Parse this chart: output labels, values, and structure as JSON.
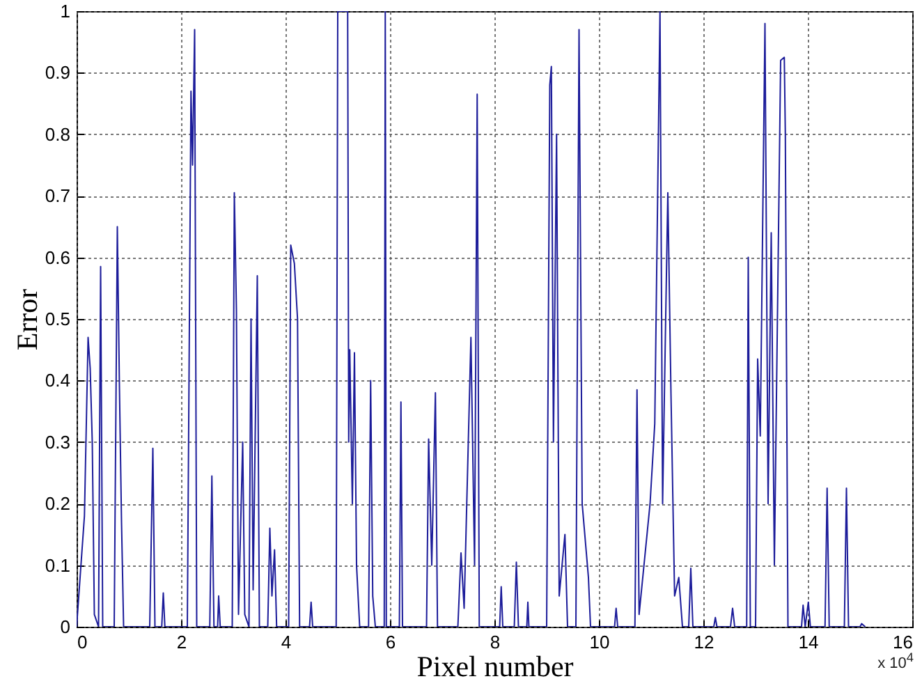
{
  "chart_data": {
    "type": "line",
    "xlabel": "Pixel number",
    "ylabel": "Error",
    "annotations": [
      "x 10$^{4}$"
    ],
    "xlim": [
      0,
      16
    ],
    "xticks": [
      0,
      2,
      4,
      6,
      8,
      10,
      12,
      14,
      16
    ],
    "ylim": [
      0,
      1
    ],
    "yticks": [
      0,
      0.1,
      0.2,
      0.3,
      0.4,
      0.5,
      0.6,
      0.7,
      0.8,
      0.9,
      1
    ],
    "grid": true,
    "line_style": "solid",
    "series": [
      {
        "color": "#1c1c9a",
        "x": [
          0,
          0.15,
          0.22,
          0.26,
          0.3,
          0.34,
          0.42,
          0.46,
          0.5,
          0.72,
          0.78,
          0.82,
          0.86,
          0.9,
          1.4,
          1.46,
          1.5,
          1.63,
          1.66,
          1.69,
          2.12,
          2.19,
          2.22,
          2.26,
          2.3,
          2.55,
          2.59,
          2.63,
          2.7,
          2.72,
          2.75,
          2.98,
          3.02,
          3.06,
          3.1,
          3.18,
          3.22,
          3.3,
          3.34,
          3.38,
          3.46,
          3.5,
          3.66,
          3.7,
          3.74,
          3.79,
          3.83,
          4.06,
          4.1,
          4.17,
          4.23,
          4.27,
          4.46,
          4.49,
          4.52,
          4.97,
          5.0,
          5.06,
          5.13,
          5.19,
          5.21,
          5.23,
          5.28,
          5.32,
          5.36,
          5.42,
          5.59,
          5.63,
          5.67,
          5.72,
          5.89,
          5.91,
          5.93,
          6.18,
          6.21,
          6.24,
          6.7,
          6.74,
          6.8,
          6.87,
          6.91,
          7.3,
          7.36,
          7.42,
          7.55,
          7.62,
          7.67,
          7.71,
          8.1,
          8.13,
          8.16,
          8.38,
          8.42,
          8.46,
          8.62,
          8.64,
          8.66,
          9.0,
          9.06,
          9.09,
          9.13,
          9.19,
          9.24,
          9.35,
          9.4,
          9.56,
          9.62,
          9.68,
          9.8,
          9.84,
          10.3,
          10.33,
          10.36,
          10.69,
          10.73,
          10.77,
          10.98,
          11.07,
          11.17,
          11.22,
          11.26,
          11.32,
          11.38,
          11.45,
          11.53,
          11.6,
          11.72,
          11.76,
          11.8,
          12.2,
          12.23,
          12.26,
          12.52,
          12.56,
          12.6,
          12.83,
          12.86,
          12.9,
          13.0,
          13.04,
          13.09,
          13.18,
          13.24,
          13.3,
          13.36,
          13.48,
          13.55,
          13.57,
          13.62,
          13.88,
          13.91,
          13.95,
          14.01,
          14.05,
          14.33,
          14.37,
          14.41,
          14.7,
          14.74,
          14.78,
          15.0,
          15.03,
          15.1
        ],
        "values": [
          0,
          0.18,
          0.47,
          0.42,
          0.3,
          0.02,
          0,
          0.585,
          0,
          0,
          0.65,
          0.39,
          0.17,
          0,
          0,
          0.29,
          0,
          0,
          0.055,
          0,
          0,
          0.87,
          0.75,
          0.97,
          0,
          0,
          0.245,
          0,
          0,
          0.05,
          0,
          0,
          0.705,
          0.515,
          0.02,
          0.3,
          0.02,
          0,
          0.5,
          0.06,
          0.57,
          0,
          0,
          0.16,
          0.05,
          0.125,
          0,
          0,
          0.62,
          0.59,
          0.5,
          0,
          0,
          0.04,
          0,
          0,
          1,
          1,
          1,
          1,
          0.3,
          0.45,
          0.2,
          0.445,
          0.1,
          0,
          0,
          0.4,
          0.05,
          0,
          0,
          1,
          0,
          0,
          0.365,
          0,
          0,
          0.305,
          0.1,
          0.38,
          0,
          0,
          0.12,
          0.03,
          0.47,
          0.1,
          0.865,
          0,
          0,
          0.065,
          0,
          0,
          0.105,
          0,
          0,
          0.04,
          0,
          0,
          0.88,
          0.91,
          0.3,
          0.8,
          0.05,
          0.15,
          0,
          0,
          0.97,
          0.2,
          0.08,
          0,
          0,
          0.03,
          0,
          0,
          0.385,
          0.02,
          0.2,
          0.33,
          1,
          0.2,
          0.405,
          0.705,
          0.38,
          0.05,
          0.08,
          0,
          0,
          0.095,
          0,
          0,
          0.015,
          0,
          0,
          0.03,
          0,
          0,
          0.6,
          0,
          0,
          0.435,
          0.31,
          0.98,
          0.2,
          0.64,
          0.1,
          0.92,
          0.925,
          0.8,
          0,
          0,
          0.035,
          0,
          0.04,
          0,
          0,
          0.225,
          0,
          0,
          0.225,
          0,
          0,
          0.005,
          0
        ]
      }
    ]
  }
}
